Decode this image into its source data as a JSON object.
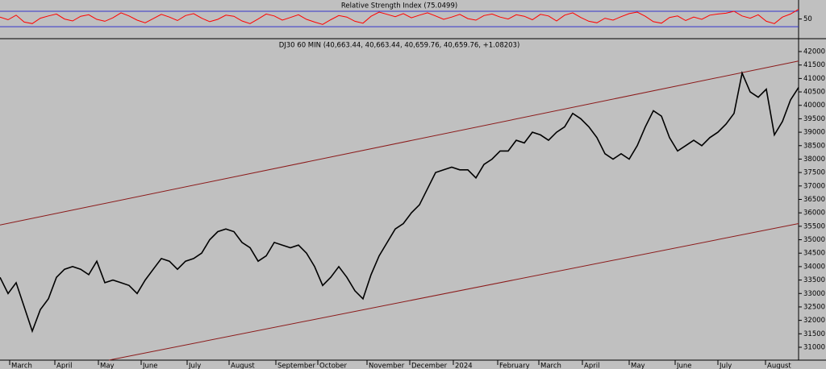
{
  "chart_data": [
    {
      "type": "line",
      "title": "Relative Strength Index (75.0499)",
      "series": [
        {
          "color": "#ff0000",
          "values": [
            55,
            48,
            60,
            42,
            38,
            52,
            58,
            63,
            50,
            45,
            57,
            61,
            49,
            44,
            53,
            66,
            58,
            47,
            40,
            51,
            62,
            55,
            46,
            59,
            64,
            52,
            43,
            49,
            60,
            57,
            45,
            38,
            50,
            63,
            58,
            47,
            54,
            61,
            49,
            42,
            36,
            48,
            59,
            55,
            44,
            39,
            57,
            68,
            62,
            56,
            64,
            53,
            60,
            66,
            58,
            49,
            55,
            62,
            51,
            47,
            59,
            63,
            55,
            50,
            61,
            57,
            48,
            62,
            58,
            45,
            60,
            66,
            54,
            44,
            40,
            52,
            47,
            56,
            64,
            68,
            57,
            43,
            39,
            54,
            58,
            46,
            55,
            49,
            60,
            63,
            65,
            70,
            58,
            52,
            61,
            44,
            38,
            55,
            63,
            75.0499
          ]
        }
      ],
      "xlim": [
        0,
        99
      ],
      "ylim": [
        3,
        91
      ],
      "yticks": [
        50
      ],
      "hlines": [
        30,
        70
      ],
      "hline_color": "#3333cc"
    },
    {
      "type": "line",
      "title": "DJ30 60 MIN (40,663.44, 40,663.44, 40,659.76, 40,659.76, +1.08203)",
      "series": [
        {
          "color": "#000000",
          "values": [
            33600,
            33000,
            33400,
            32500,
            31600,
            32400,
            32800,
            33600,
            33900,
            34000,
            33900,
            33700,
            34200,
            33400,
            33500,
            33400,
            33300,
            33000,
            33500,
            33900,
            34300,
            34200,
            33900,
            34200,
            34300,
            34500,
            35000,
            35300,
            35400,
            35300,
            34900,
            34700,
            34200,
            34400,
            34900,
            34800,
            34700,
            34800,
            34500,
            34000,
            33300,
            33600,
            34000,
            33600,
            33100,
            32800,
            33700,
            34400,
            34900,
            35400,
            35600,
            36000,
            36300,
            36900,
            37500,
            37600,
            37700,
            37600,
            37600,
            37300,
            37800,
            38000,
            38300,
            38300,
            38700,
            38600,
            39000,
            38900,
            38700,
            39000,
            39200,
            39700,
            39500,
            39200,
            38800,
            38200,
            38000,
            38200,
            38000,
            38500,
            39200,
            39800,
            39600,
            38800,
            38300,
            38500,
            38700,
            38500,
            38800,
            39000,
            39300,
            39700,
            41200,
            40500,
            40300,
            40600,
            38900,
            39400,
            40200,
            40663.44
          ]
        }
      ],
      "trendlines": [
        {
          "x": [
            0,
            99
          ],
          "values": [
            35550,
            41650
          ]
        },
        {
          "x": [
            13.5,
            99
          ],
          "values": [
            30520,
            35600
          ]
        }
      ],
      "trend_color": "#8b1a1a",
      "xlim": [
        0,
        99
      ],
      "ylim": [
        30520,
        42420
      ],
      "yticks": [
        31000,
        31500,
        32000,
        32500,
        33000,
        33500,
        34000,
        34500,
        35000,
        35500,
        36000,
        36500,
        37000,
        37500,
        38000,
        38500,
        39000,
        39500,
        40000,
        40500,
        41000,
        41500,
        42000
      ],
      "xticks": [
        {
          "value": 1.2,
          "label": "March"
        },
        {
          "value": 6.8,
          "label": "April"
        },
        {
          "value": 12.2,
          "label": "May"
        },
        {
          "value": 17.5,
          "label": "June"
        },
        {
          "value": 23.2,
          "label": "July"
        },
        {
          "value": 28.4,
          "label": "August"
        },
        {
          "value": 34.2,
          "label": "September"
        },
        {
          "value": 39.4,
          "label": "October"
        },
        {
          "value": 45.5,
          "label": "November"
        },
        {
          "value": 50.8,
          "label": "December"
        },
        {
          "value": 56.2,
          "label": "2024"
        },
        {
          "value": 61.7,
          "label": "February"
        },
        {
          "value": 66.8,
          "label": "March"
        },
        {
          "value": 72.2,
          "label": "April"
        },
        {
          "value": 78,
          "label": "May"
        },
        {
          "value": 83.7,
          "label": "June"
        },
        {
          "value": 89,
          "label": "July"
        },
        {
          "value": 94.9,
          "label": "August"
        }
      ]
    }
  ]
}
